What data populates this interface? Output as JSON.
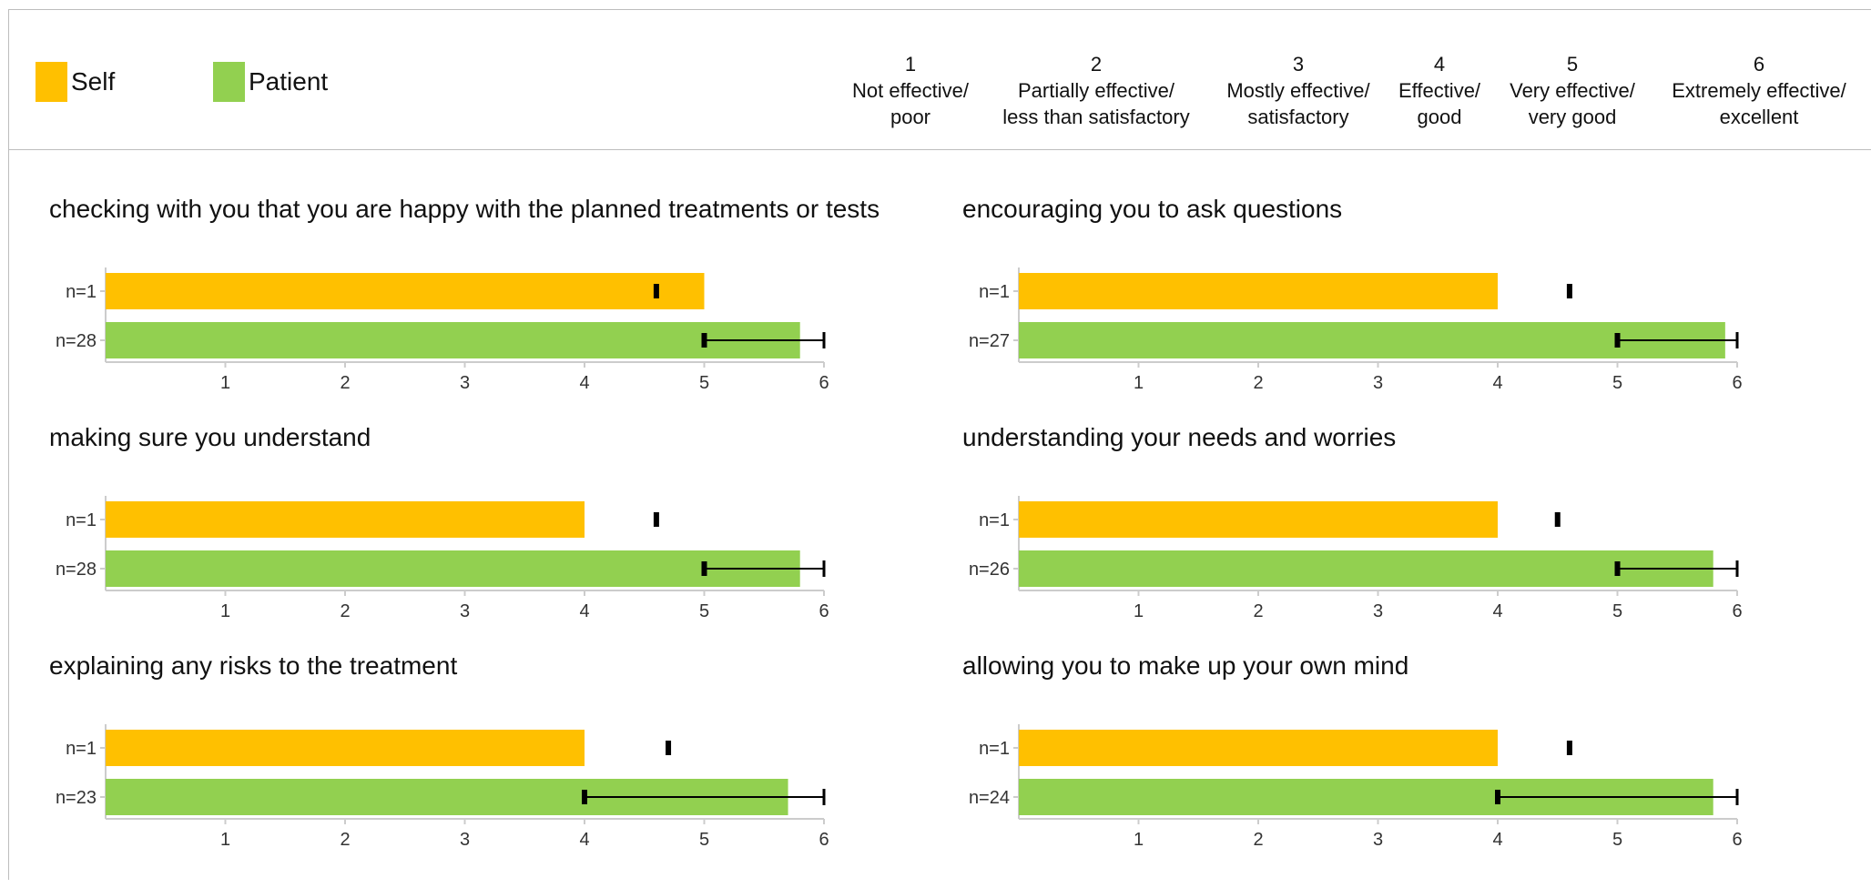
{
  "colors": {
    "self": "#FFC000",
    "patient": "#92D050",
    "axis": "#cccccc",
    "tick_text": "#333333",
    "marker": "#000000"
  },
  "legend": [
    {
      "label": "Self",
      "color": "#FFC000"
    },
    {
      "label": "Patient",
      "color": "#92D050"
    }
  ],
  "scale": [
    {
      "num": "1",
      "line1": "Not effective/",
      "line2": "poor"
    },
    {
      "num": "2",
      "line1": "Partially effective/",
      "line2": "less than satisfactory"
    },
    {
      "num": "3",
      "line1": "Mostly effective/",
      "line2": "satisfactory"
    },
    {
      "num": "4",
      "line1": "Effective/",
      "line2": "good"
    },
    {
      "num": "5",
      "line1": "Very effective/",
      "line2": "very good"
    },
    {
      "num": "6",
      "line1": "Extremely effective/",
      "line2": "excellent"
    }
  ],
  "chart_data": [
    {
      "type": "bar",
      "title": "checking with you that you are happy with the planned treatments or tests",
      "orientation": "horizontal",
      "xlim": [
        0,
        6
      ],
      "ticks": [
        1,
        2,
        3,
        4,
        5,
        6
      ],
      "series": [
        {
          "name": "Self",
          "label": "n=1",
          "value": 5.0,
          "marker": 4.6
        },
        {
          "name": "Patient",
          "label": "n=28",
          "value": 5.8,
          "range": [
            5,
            6
          ]
        }
      ]
    },
    {
      "type": "bar",
      "title": "encouraging you to ask questions",
      "orientation": "horizontal",
      "xlim": [
        0,
        6
      ],
      "ticks": [
        1,
        2,
        3,
        4,
        5,
        6
      ],
      "series": [
        {
          "name": "Self",
          "label": "n=1",
          "value": 4.0,
          "marker": 4.6
        },
        {
          "name": "Patient",
          "label": "n=27",
          "value": 5.9,
          "range": [
            5,
            6
          ]
        }
      ]
    },
    {
      "type": "bar",
      "title": "making sure you understand",
      "orientation": "horizontal",
      "xlim": [
        0,
        6
      ],
      "ticks": [
        1,
        2,
        3,
        4,
        5,
        6
      ],
      "series": [
        {
          "name": "Self",
          "label": "n=1",
          "value": 4.0,
          "marker": 4.6
        },
        {
          "name": "Patient",
          "label": "n=28",
          "value": 5.8,
          "range": [
            5,
            6
          ]
        }
      ]
    },
    {
      "type": "bar",
      "title": "understanding your needs and worries",
      "orientation": "horizontal",
      "xlim": [
        0,
        6
      ],
      "ticks": [
        1,
        2,
        3,
        4,
        5,
        6
      ],
      "series": [
        {
          "name": "Self",
          "label": "n=1",
          "value": 4.0,
          "marker": 4.5
        },
        {
          "name": "Patient",
          "label": "n=26",
          "value": 5.8,
          "range": [
            5,
            6
          ]
        }
      ]
    },
    {
      "type": "bar",
      "title": "explaining any risks to the treatment",
      "orientation": "horizontal",
      "xlim": [
        0,
        6
      ],
      "ticks": [
        1,
        2,
        3,
        4,
        5,
        6
      ],
      "series": [
        {
          "name": "Self",
          "label": "n=1",
          "value": 4.0,
          "marker": 4.7
        },
        {
          "name": "Patient",
          "label": "n=23",
          "value": 5.7,
          "range": [
            4,
            6
          ]
        }
      ]
    },
    {
      "type": "bar",
      "title": "allowing you to make up your own mind",
      "orientation": "horizontal",
      "xlim": [
        0,
        6
      ],
      "ticks": [
        1,
        2,
        3,
        4,
        5,
        6
      ],
      "series": [
        {
          "name": "Self",
          "label": "n=1",
          "value": 4.0,
          "marker": 4.6
        },
        {
          "name": "Patient",
          "label": "n=24",
          "value": 5.8,
          "range": [
            4,
            6
          ]
        }
      ]
    }
  ]
}
